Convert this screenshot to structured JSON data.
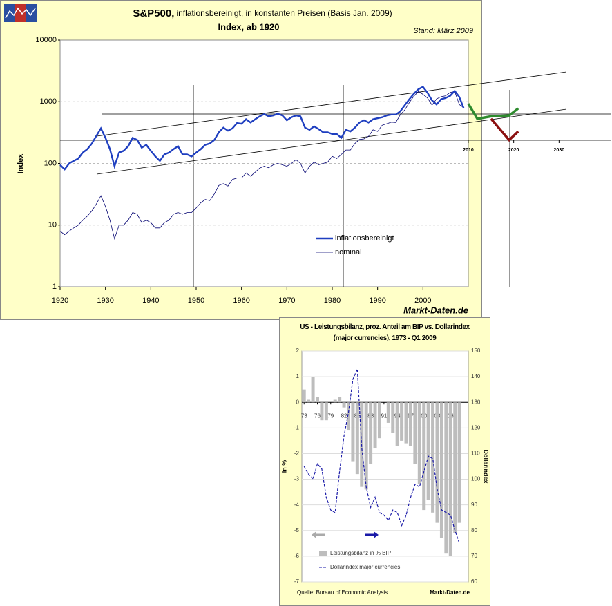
{
  "chart_data": [
    {
      "type": "line",
      "title": "S&P500,",
      "title_detail": "inflationsbereinigt, in konstanten Preisen (Basis Jan. 2009)",
      "subtitle": "Index, ab 1920",
      "note": "Stand: März 2009",
      "y_label": "Index",
      "source": "Markt-Daten.de",
      "log_y": true,
      "grid": true,
      "xlim": [
        1920,
        2010
      ],
      "ylim": [
        1,
        10000
      ],
      "xticks": [
        1920,
        1930,
        1940,
        1950,
        1960,
        1970,
        1980,
        1990,
        2000
      ],
      "yticks": [
        1,
        10,
        100,
        1000,
        10000
      ],
      "x": [
        1920,
        1921,
        1922,
        1923,
        1924,
        1925,
        1926,
        1927,
        1928,
        1929,
        1930,
        1931,
        1932,
        1933,
        1934,
        1935,
        1936,
        1937,
        1938,
        1939,
        1940,
        1941,
        1942,
        1943,
        1944,
        1945,
        1946,
        1947,
        1948,
        1949,
        1950,
        1951,
        1952,
        1953,
        1954,
        1955,
        1956,
        1957,
        1958,
        1959,
        1960,
        1961,
        1962,
        1963,
        1964,
        1965,
        1966,
        1967,
        1968,
        1969,
        1970,
        1971,
        1972,
        1973,
        1974,
        1975,
        1976,
        1977,
        1978,
        1979,
        1980,
        1981,
        1982,
        1983,
        1984,
        1985,
        1986,
        1987,
        1988,
        1989,
        1990,
        1991,
        1992,
        1993,
        1994,
        1995,
        1996,
        1997,
        1998,
        1999,
        2000,
        2001,
        2002,
        2003,
        2004,
        2005,
        2006,
        2007,
        2008,
        2009
      ],
      "series": [
        {
          "name": "inflationsbereinigt",
          "color": "#1f3fc0",
          "values": [
            95,
            80,
            100,
            110,
            120,
            150,
            170,
            210,
            280,
            370,
            260,
            170,
            90,
            150,
            160,
            190,
            260,
            240,
            180,
            200,
            160,
            130,
            110,
            140,
            150,
            170,
            190,
            140,
            140,
            130,
            150,
            170,
            200,
            210,
            240,
            320,
            380,
            340,
            370,
            450,
            440,
            520,
            460,
            520,
            580,
            630,
            580,
            600,
            640,
            600,
            500,
            560,
            600,
            580,
            380,
            350,
            400,
            360,
            320,
            320,
            300,
            300,
            260,
            350,
            330,
            380,
            460,
            500,
            460,
            520,
            540,
            560,
            600,
            620,
            620,
            700,
            880,
            1100,
            1350,
            1600,
            1750,
            1400,
            1050,
            900,
            1100,
            1150,
            1250,
            1500,
            1200,
            780
          ]
        },
        {
          "name": "nominal",
          "color": "#000070",
          "values": [
            8,
            7,
            8,
            9,
            10,
            12,
            14,
            17,
            22,
            30,
            20,
            12,
            6,
            10,
            10,
            12,
            16,
            15,
            11,
            12,
            11,
            9,
            9,
            11,
            12,
            15,
            16,
            15,
            16,
            16,
            19,
            23,
            26,
            25,
            32,
            44,
            47,
            43,
            55,
            58,
            58,
            70,
            62,
            72,
            84,
            90,
            85,
            95,
            100,
            95,
            90,
            100,
            115,
            100,
            70,
            90,
            105,
            95,
            100,
            105,
            130,
            120,
            140,
            165,
            165,
            210,
            245,
            250,
            275,
            350,
            330,
            415,
            440,
            465,
            460,
            615,
            740,
            970,
            1230,
            1470,
            1320,
            1150,
            880,
            1110,
            1210,
            1250,
            1420,
            1470,
            900,
            800
          ]
        }
      ],
      "projection_xticks": [
        2010,
        2020,
        2030
      ],
      "projections": [
        {
          "color": "#2e8b2e",
          "x": [
            2010,
            2012,
            2015,
            2019,
            2021
          ],
          "values": [
            930,
            530,
            580,
            600,
            780
          ]
        },
        {
          "color": "#8b1010",
          "x": [
            2015,
            2019,
            2021
          ],
          "values": [
            530,
            240,
            330
          ]
        }
      ]
    },
    {
      "type": "bar_line",
      "title": "US - Leistungsbilanz, proz. Anteil am BIP vs. Dollarindex (major currencies), 1973 - Q1 2009",
      "y_label": "in %",
      "y2_label": "Dollarindex",
      "source_left": "Quelle: Bureau of Economic Analysis",
      "source": "Markt-Daten.de",
      "xlim": [
        1972.5,
        2010
      ],
      "ylim": [
        -7,
        2
      ],
      "y2lim": [
        60,
        150
      ],
      "xticks": [
        {
          "value": 1973,
          "label": "73"
        },
        {
          "value": 1976,
          "label": "76"
        },
        {
          "value": 1979,
          "label": "79"
        },
        {
          "value": 1982,
          "label": "82"
        },
        {
          "value": 1985,
          "label": "85"
        },
        {
          "value": 1988,
          "label": "88"
        },
        {
          "value": 1991,
          "label": "91"
        },
        {
          "value": 1994,
          "label": "94"
        },
        {
          "value": 1997,
          "label": "97"
        },
        {
          "value": 2000,
          "label": "00"
        },
        {
          "value": 2003,
          "label": "03"
        },
        {
          "value": 2006,
          "label": "06"
        }
      ],
      "yticks": [
        2,
        1,
        0,
        -1,
        -2,
        -3,
        -4,
        -5,
        -6,
        -7
      ],
      "y2ticks": [
        150,
        140,
        130,
        120,
        110,
        100,
        90,
        80,
        70,
        60
      ],
      "x": [
        1973,
        1974,
        1975,
        1976,
        1977,
        1978,
        1979,
        1980,
        1981,
        1982,
        1983,
        1984,
        1985,
        1986,
        1987,
        1988,
        1989,
        1990,
        1991,
        1992,
        1993,
        1994,
        1995,
        1996,
        1997,
        1998,
        1999,
        2000,
        2001,
        2002,
        2003,
        2004,
        2005,
        2006,
        2007,
        2008
      ],
      "series": [
        {
          "name": "Leistungsbilanz in % BIP",
          "color": "#bdbdbd",
          "values": [
            0.5,
            0.1,
            1.0,
            0.2,
            -0.7,
            -0.7,
            0,
            0.1,
            0.2,
            -0.2,
            -1.1,
            -2.3,
            -2.8,
            -3.3,
            -3.4,
            -2.4,
            -1.8,
            -1.4,
            0,
            -0.8,
            -1.2,
            -1.7,
            -1.5,
            -1.6,
            -1.7,
            -2.4,
            -3.2,
            -4.2,
            -3.8,
            -4.3,
            -4.7,
            -5.3,
            -5.9,
            -6.0,
            -5.1,
            -4.7
          ]
        },
        {
          "name": "Dollarindex major currencies",
          "color": "#1a1aa8",
          "axis": "y2",
          "values": [
            105,
            102,
            100,
            106,
            104,
            93,
            88,
            87,
            103,
            117,
            126,
            139,
            143,
            112,
            97,
            89,
            93,
            87,
            86,
            84,
            88,
            87,
            82,
            86,
            93,
            98,
            97,
            103,
            109,
            108,
            96,
            88,
            87,
            86,
            80,
            75
          ]
        }
      ]
    }
  ]
}
